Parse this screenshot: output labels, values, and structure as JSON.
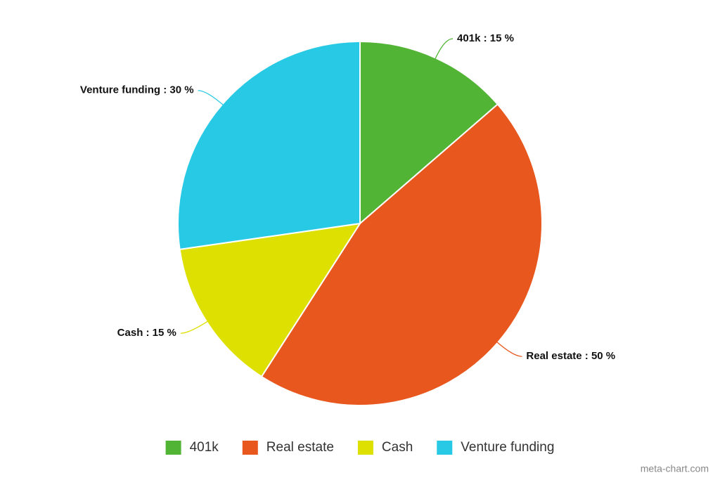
{
  "chart_data": {
    "type": "pie",
    "categories": [
      "401k",
      "Real estate",
      "Cash",
      "Venture funding"
    ],
    "values": [
      15,
      50,
      15,
      30
    ],
    "value_labels": [
      "401k : 15 %",
      "Real estate : 50 %",
      "Cash : 15 %",
      "Venture funding : 30 %"
    ],
    "colors": [
      "#52b435",
      "#e8571e",
      "#dde000",
      "#27c9e4"
    ],
    "legend": "bottom",
    "credit": "meta-chart.com"
  }
}
